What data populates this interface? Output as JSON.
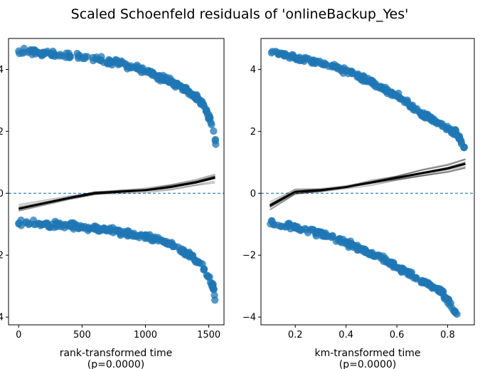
{
  "figure": {
    "title": "Scaled Schoenfeld residuals of 'onlineBackup_Yes'"
  },
  "chart_data": [
    {
      "type": "scatter",
      "xlabel": "rank-transformed time",
      "xlabel_sub": "(p=0.0000)",
      "xlim": [
        -80,
        1620
      ],
      "ylim": [
        -4.25,
        5.0
      ],
      "xticks": [
        0,
        500,
        1000,
        1500
      ],
      "xtick_labels": [
        "0",
        "500",
        "1000",
        "1500"
      ],
      "yticks": [
        -4,
        -2,
        0,
        2,
        4
      ],
      "ytick_labels": [
        "−4",
        "−2",
        "0",
        "2",
        "4"
      ],
      "grid": false,
      "reference_line": 0,
      "point_color": "#1f77b4",
      "upper_band": {
        "x": [
          0,
          200,
          400,
          600,
          800,
          1000,
          1200,
          1350,
          1450,
          1500,
          1540,
          1560
        ],
        "y": [
          4.6,
          4.55,
          4.45,
          4.35,
          4.2,
          3.95,
          3.6,
          3.25,
          2.9,
          2.5,
          2.0,
          1.5
        ]
      },
      "lower_band": {
        "x": [
          0,
          200,
          400,
          600,
          800,
          1000,
          1200,
          1350,
          1450,
          1500,
          1540,
          1560
        ],
        "y": [
          -0.95,
          -1.0,
          -1.05,
          -1.15,
          -1.25,
          -1.4,
          -1.65,
          -2.0,
          -2.35,
          -2.7,
          -3.1,
          -3.9
        ]
      },
      "trend": {
        "x": [
          0,
          400,
          600,
          800,
          1000,
          1200,
          1400,
          1550
        ],
        "y": [
          -0.5,
          -0.15,
          0.0,
          0.05,
          0.1,
          0.2,
          0.35,
          0.5
        ]
      },
      "bootstrap_spread": 0.32
    },
    {
      "type": "scatter",
      "xlabel": "km-transformed time",
      "xlabel_sub": "(p=0.0000)",
      "xlim": [
        0.065,
        0.905
      ],
      "ylim": [
        -4.25,
        5.0
      ],
      "xticks": [
        0.2,
        0.4,
        0.6,
        0.8
      ],
      "xtick_labels": [
        "0.2",
        "0.4",
        "0.6",
        "0.8"
      ],
      "yticks": [
        -4,
        -2,
        0,
        2,
        4
      ],
      "ytick_labels": [
        "−4",
        "−2",
        "0",
        "2",
        "4"
      ],
      "grid": false,
      "reference_line": 0,
      "point_color": "#1f77b4",
      "upper_band": {
        "x": [
          0.1,
          0.2,
          0.3,
          0.4,
          0.5,
          0.6,
          0.7,
          0.78,
          0.84,
          0.87
        ],
        "y": [
          4.55,
          4.4,
          4.2,
          3.95,
          3.6,
          3.15,
          2.55,
          2.2,
          1.9,
          1.4
        ]
      },
      "lower_band": {
        "x": [
          0.1,
          0.2,
          0.3,
          0.4,
          0.5,
          0.6,
          0.7,
          0.78,
          0.84
        ],
        "y": [
          -0.95,
          -1.1,
          -1.3,
          -1.6,
          -1.95,
          -2.35,
          -2.85,
          -3.2,
          -3.95
        ]
      },
      "trend": {
        "x": [
          0.1,
          0.2,
          0.3,
          0.4,
          0.5,
          0.6,
          0.7,
          0.8,
          0.87
        ],
        "y": [
          -0.4,
          0.05,
          0.1,
          0.2,
          0.35,
          0.5,
          0.65,
          0.8,
          0.95
        ]
      },
      "bootstrap_spread": 0.55
    }
  ]
}
